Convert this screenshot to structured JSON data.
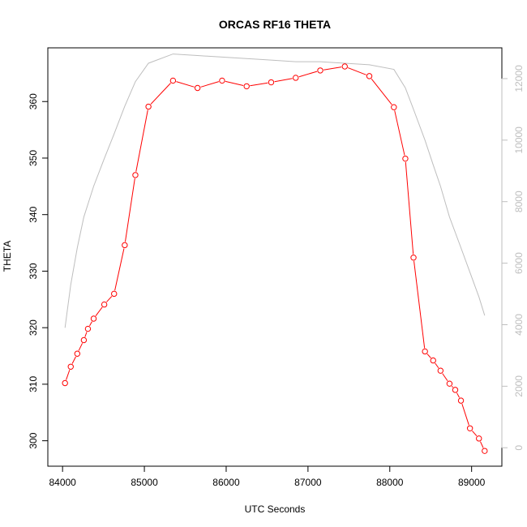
{
  "chart_data": {
    "type": "line",
    "title": "ORCAS RF16 THETA",
    "xlabel": "UTC Seconds",
    "ylabel": "THETA",
    "xlim": [
      83820,
      89370
    ],
    "ylim": [
      295.5,
      369.5
    ],
    "y2lim": [
      -600,
      13000
    ],
    "x_ticks": [
      84000,
      85000,
      86000,
      87000,
      88000,
      89000
    ],
    "y_ticks": [
      300,
      310,
      320,
      330,
      340,
      350,
      360
    ],
    "y2_ticks": [
      0,
      2000,
      4000,
      6000,
      8000,
      10000,
      12000
    ],
    "grid": false,
    "legend": "none",
    "colors": {
      "theta": "#ff0000",
      "altitude": "#bebebe",
      "axis": "#000000",
      "axis2": "#bebebe"
    },
    "series": [
      {
        "axis": "left",
        "marker": "open-circle",
        "x": [
          84030,
          84100,
          84180,
          84260,
          84310,
          84380,
          84510,
          84630,
          84760,
          84890,
          85050,
          85350,
          85650,
          85950,
          86250,
          86550,
          86850,
          87150,
          87450,
          87750,
          88050,
          88190,
          88290,
          88430,
          88530,
          88620,
          88730,
          88800,
          88870,
          88980,
          89090,
          89160
        ],
        "values": [
          310.2,
          313.1,
          315.4,
          317.8,
          319.8,
          321.6,
          324.1,
          326.0,
          334.6,
          347.0,
          359.1,
          363.7,
          362.4,
          363.7,
          362.7,
          363.4,
          364.2,
          365.5,
          366.2,
          364.5,
          359.0,
          349.9,
          332.4,
          315.8,
          314.2,
          312.4,
          310.1,
          309.0,
          307.1,
          302.2,
          300.4,
          298.2
        ]
      },
      {
        "axis": "right",
        "marker": "none",
        "x": [
          84030,
          84100,
          84180,
          84260,
          84380,
          84510,
          84630,
          84760,
          84890,
          85050,
          85350,
          85650,
          85950,
          86250,
          86550,
          86850,
          87150,
          87450,
          87750,
          88050,
          88190,
          88290,
          88430,
          88530,
          88620,
          88730,
          88870,
          88980,
          89090,
          89160
        ],
        "values": [
          3900,
          5300,
          6500,
          7500,
          8500,
          9400,
          10200,
          11100,
          11900,
          12500,
          12800,
          12750,
          12700,
          12650,
          12600,
          12550,
          12550,
          12500,
          12450,
          12300,
          11700,
          11000,
          10000,
          9200,
          8500,
          7500,
          6500,
          5700,
          4900,
          4300
        ]
      }
    ]
  }
}
